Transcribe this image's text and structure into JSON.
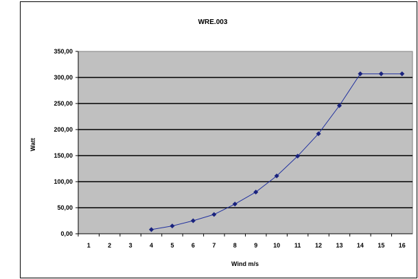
{
  "chart_data": {
    "type": "line",
    "title": "WRE.003",
    "xlabel": "Wind m/s",
    "ylabel": "Watt",
    "categories": [
      "1",
      "2",
      "3",
      "4",
      "5",
      "6",
      "7",
      "8",
      "9",
      "10",
      "11",
      "12",
      "13",
      "14",
      "15",
      "16"
    ],
    "series": [
      {
        "x": [
          4,
          5,
          6,
          7,
          8,
          9,
          10,
          11,
          12,
          13,
          14,
          15,
          16
        ],
        "values": [
          8,
          15,
          25,
          37,
          57,
          80,
          111,
          149,
          192,
          246,
          307,
          307,
          307
        ]
      }
    ],
    "yticks": [
      "0,00",
      "50,00",
      "100,00",
      "150,00",
      "200,00",
      "250,00",
      "300,00",
      "350,00"
    ],
    "ylim": [
      0,
      350
    ],
    "grid": true,
    "plot_background": "#c0c0c0",
    "line_color": "#1f2f9f",
    "marker_color": "#1a237e"
  }
}
